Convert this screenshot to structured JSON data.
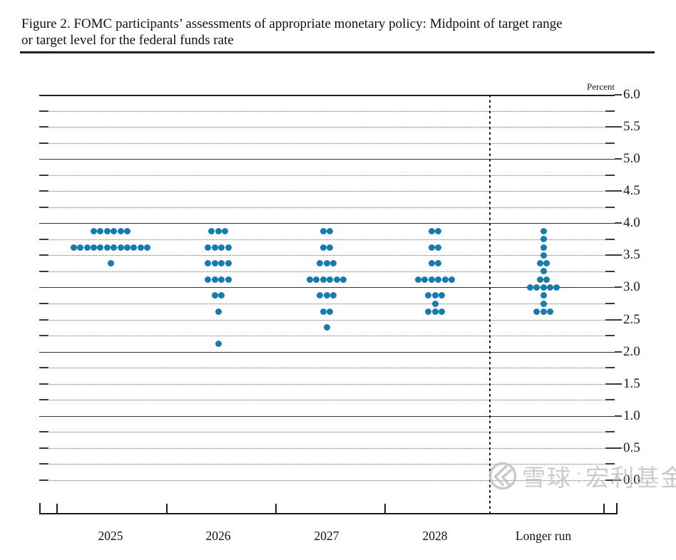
{
  "figure": {
    "title_line1": "Figure 2. FOMC participants’ assessments of appropriate monetary policy: Midpoint of target range",
    "title_line2": "or target level for the federal funds rate"
  },
  "chart_data": {
    "type": "scatter",
    "title": "FOMC participants’ assessments of appropriate monetary policy: Midpoint of target range or target level for the federal funds rate",
    "unit_label": "Percent",
    "ylabel": "Percent",
    "ylim": [
      0.0,
      6.0
    ],
    "grid": {
      "solid_lines_at": [
        1.0,
        2.0,
        3.0,
        4.0,
        5.0,
        6.0
      ],
      "dotted_step": 0.25,
      "legend": "none"
    },
    "dot_color": "#177bae",
    "y_tick_labels": [
      {
        "value": 6.0,
        "label": "6.0"
      },
      {
        "value": 5.5,
        "label": "5.5"
      },
      {
        "value": 5.0,
        "label": "5.0"
      },
      {
        "value": 4.5,
        "label": "4.5"
      },
      {
        "value": 4.0,
        "label": "4.0"
      },
      {
        "value": 3.5,
        "label": "3.5"
      },
      {
        "value": 3.0,
        "label": "3.0"
      },
      {
        "value": 2.5,
        "label": "2.5"
      },
      {
        "value": 2.0,
        "label": "2.0"
      },
      {
        "value": 1.5,
        "label": "1.5"
      },
      {
        "value": 1.0,
        "label": "1.0"
      },
      {
        "value": 0.5,
        "label": "0.5"
      },
      {
        "value": 0.0,
        "label": "0.0"
      }
    ],
    "x_categories": [
      "2025",
      "2026",
      "2027",
      "2028",
      "Longer run"
    ],
    "series": [
      {
        "category": "2025",
        "dots": [
          {
            "rate": 3.875,
            "count": 6
          },
          {
            "rate": 3.625,
            "count": 12
          },
          {
            "rate": 3.375,
            "count": 1
          }
        ]
      },
      {
        "category": "2026",
        "dots": [
          {
            "rate": 3.875,
            "count": 3
          },
          {
            "rate": 3.625,
            "count": 4
          },
          {
            "rate": 3.375,
            "count": 4
          },
          {
            "rate": 3.125,
            "count": 4
          },
          {
            "rate": 2.875,
            "count": 2
          },
          {
            "rate": 2.625,
            "count": 1
          },
          {
            "rate": 2.125,
            "count": 1
          }
        ]
      },
      {
        "category": "2027",
        "dots": [
          {
            "rate": 3.875,
            "count": 2
          },
          {
            "rate": 3.625,
            "count": 2
          },
          {
            "rate": 3.375,
            "count": 3
          },
          {
            "rate": 3.125,
            "count": 6
          },
          {
            "rate": 2.875,
            "count": 3
          },
          {
            "rate": 2.625,
            "count": 2
          },
          {
            "rate": 2.375,
            "count": 1
          }
        ]
      },
      {
        "category": "2028",
        "dots": [
          {
            "rate": 3.875,
            "count": 2
          },
          {
            "rate": 3.625,
            "count": 2
          },
          {
            "rate": 3.375,
            "count": 2
          },
          {
            "rate": 3.125,
            "count": 6
          },
          {
            "rate": 2.875,
            "count": 3
          },
          {
            "rate": 2.75,
            "count": 1
          },
          {
            "rate": 2.625,
            "count": 3
          }
        ]
      },
      {
        "category": "Longer run",
        "dots": [
          {
            "rate": 3.875,
            "count": 1
          },
          {
            "rate": 3.75,
            "count": 1
          },
          {
            "rate": 3.625,
            "count": 1
          },
          {
            "rate": 3.5,
            "count": 1
          },
          {
            "rate": 3.375,
            "count": 2
          },
          {
            "rate": 3.25,
            "count": 1
          },
          {
            "rate": 3.125,
            "count": 2
          },
          {
            "rate": 3.0,
            "count": 5
          },
          {
            "rate": 2.875,
            "count": 1
          },
          {
            "rate": 2.75,
            "count": 1
          },
          {
            "rate": 2.625,
            "count": 3
          }
        ]
      }
    ]
  },
  "watermark": {
    "brand": "雪球",
    "separator": ":",
    "account": "宏利基金"
  }
}
